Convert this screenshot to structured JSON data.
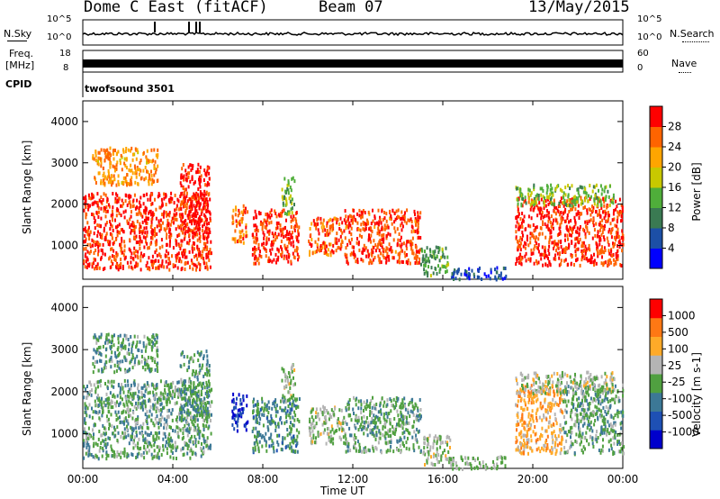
{
  "header": {
    "station": "Dome C East (fitACF)",
    "beam": "Beam 07",
    "date": "13/May/2015"
  },
  "strips": {
    "nsky_label": "N.Sky",
    "nsky_ticks": [
      "10^5",
      "10^0"
    ],
    "nsearch_label": "N.Search",
    "nsearch_ticks": [
      "10^5",
      "10^0"
    ],
    "freq_label": "Freq.",
    "freq_unit": "[MHz]",
    "freq_ticks": [
      "18",
      "8"
    ],
    "nave_label": "Nave",
    "nave_ticks": [
      "60",
      "0"
    ],
    "cpid_label": "CPID",
    "cpid_value": "twofsound 3501"
  },
  "power_panel": {
    "ylabel": "Slant Range [km]",
    "colorbar_label": "Power [dB]",
    "colorbar_ticks": [
      "28",
      "24",
      "20",
      "16",
      "12",
      "8",
      "4"
    ]
  },
  "velocity_panel": {
    "ylabel": "Slant Range [km]",
    "colorbar_label": "Velocity [m s-1]",
    "colorbar_ticks": [
      "1000",
      "500",
      "100",
      "25",
      "-25",
      "-100",
      "-500",
      "-1000"
    ]
  },
  "colors": {
    "power_scale": [
      "#0000ff",
      "#1c4fa6",
      "#3a7a52",
      "#4fae3a",
      "#c8c800",
      "#ffa500",
      "#ff6400",
      "#ff0000"
    ],
    "velocity_scale": [
      "#0000cc",
      "#1e50b4",
      "#3c7896",
      "#50a040",
      "#b4b4b4",
      "#ffaa28",
      "#ff7814",
      "#ff0000"
    ]
  },
  "chart_data": [
    {
      "type": "heatmap",
      "title": "",
      "xlabel": "Time UT",
      "ylabel": "Slant Range [km]",
      "x_ticks": [
        "00:00",
        "04:00",
        "08:00",
        "12:00",
        "16:00",
        "20:00",
        "00:00"
      ],
      "y_ticks": [
        "1000",
        "2000",
        "3000",
        "4000"
      ],
      "xlim_hours": [
        0,
        24
      ],
      "ylim": [
        180,
        4500
      ],
      "colorbar": {
        "label": "Power [dB]",
        "range": [
          0,
          30
        ]
      },
      "echo_regions": [
        {
          "t0": 0.0,
          "t1": 5.7,
          "r0": 450,
          "r1": 2300,
          "value": 27
        },
        {
          "t0": 0.4,
          "t1": 3.3,
          "r0": 2500,
          "r1": 3400,
          "value": 22
        },
        {
          "t0": 4.3,
          "t1": 5.6,
          "r0": 1300,
          "r1": 3000,
          "value": 28
        },
        {
          "t0": 6.6,
          "t1": 7.3,
          "r0": 1100,
          "r1": 2000,
          "value": 24
        },
        {
          "t0": 7.5,
          "t1": 9.6,
          "r0": 600,
          "r1": 1900,
          "value": 27
        },
        {
          "t0": 8.8,
          "t1": 9.4,
          "r0": 1800,
          "r1": 2700,
          "value": 14
        },
        {
          "t0": 10.0,
          "t1": 11.6,
          "r0": 800,
          "r1": 1700,
          "value": 25
        },
        {
          "t0": 11.6,
          "t1": 15.0,
          "r0": 600,
          "r1": 1900,
          "value": 26
        },
        {
          "t0": 15.0,
          "t1": 16.3,
          "r0": 300,
          "r1": 1000,
          "value": 12
        },
        {
          "t0": 16.3,
          "t1": 18.8,
          "r0": 200,
          "r1": 500,
          "value": 6
        },
        {
          "t0": 19.2,
          "t1": 24.0,
          "r0": 550,
          "r1": 2200,
          "value": 27
        },
        {
          "t0": 19.2,
          "t1": 23.6,
          "r0": 2000,
          "r1": 2500,
          "value": 14
        }
      ]
    },
    {
      "type": "heatmap",
      "title": "",
      "xlabel": "Time UT",
      "ylabel": "Slant Range [km]",
      "x_ticks": [
        "00:00",
        "04:00",
        "08:00",
        "12:00",
        "16:00",
        "20:00",
        "00:00"
      ],
      "y_ticks": [
        "1000",
        "2000",
        "3000",
        "4000"
      ],
      "xlim_hours": [
        0,
        24
      ],
      "ylim": [
        180,
        4500
      ],
      "colorbar": {
        "label": "Velocity [m s-1]",
        "range": [
          -1000,
          1000
        ]
      },
      "echo_regions": [
        {
          "t0": 0.0,
          "t1": 5.7,
          "r0": 450,
          "r1": 2300,
          "value": -150
        },
        {
          "t0": 0.4,
          "t1": 3.3,
          "r0": 2500,
          "r1": 3400,
          "value": -200
        },
        {
          "t0": 4.3,
          "t1": 5.6,
          "r0": 1300,
          "r1": 3000,
          "value": -200
        },
        {
          "t0": 6.6,
          "t1": 7.3,
          "r0": 1100,
          "r1": 2000,
          "value": -800
        },
        {
          "t0": 7.5,
          "t1": 9.6,
          "r0": 600,
          "r1": 1900,
          "value": -300
        },
        {
          "t0": 8.8,
          "t1": 9.4,
          "r0": 1800,
          "r1": 2700,
          "value": 60
        },
        {
          "t0": 10.0,
          "t1": 11.6,
          "r0": 800,
          "r1": 1700,
          "value": 50
        },
        {
          "t0": 11.6,
          "t1": 15.0,
          "r0": 600,
          "r1": 1900,
          "value": -150
        },
        {
          "t0": 15.0,
          "t1": 16.3,
          "r0": 300,
          "r1": 1000,
          "value": 80
        },
        {
          "t0": 16.3,
          "t1": 18.8,
          "r0": 200,
          "r1": 500,
          "value": 0
        },
        {
          "t0": 19.2,
          "t1": 21.3,
          "r0": 550,
          "r1": 2200,
          "value": 400
        },
        {
          "t0": 21.3,
          "t1": 24.0,
          "r0": 550,
          "r1": 2200,
          "value": -150
        },
        {
          "t0": 19.2,
          "t1": 23.6,
          "r0": 2000,
          "r1": 2500,
          "value": 80
        }
      ]
    }
  ]
}
